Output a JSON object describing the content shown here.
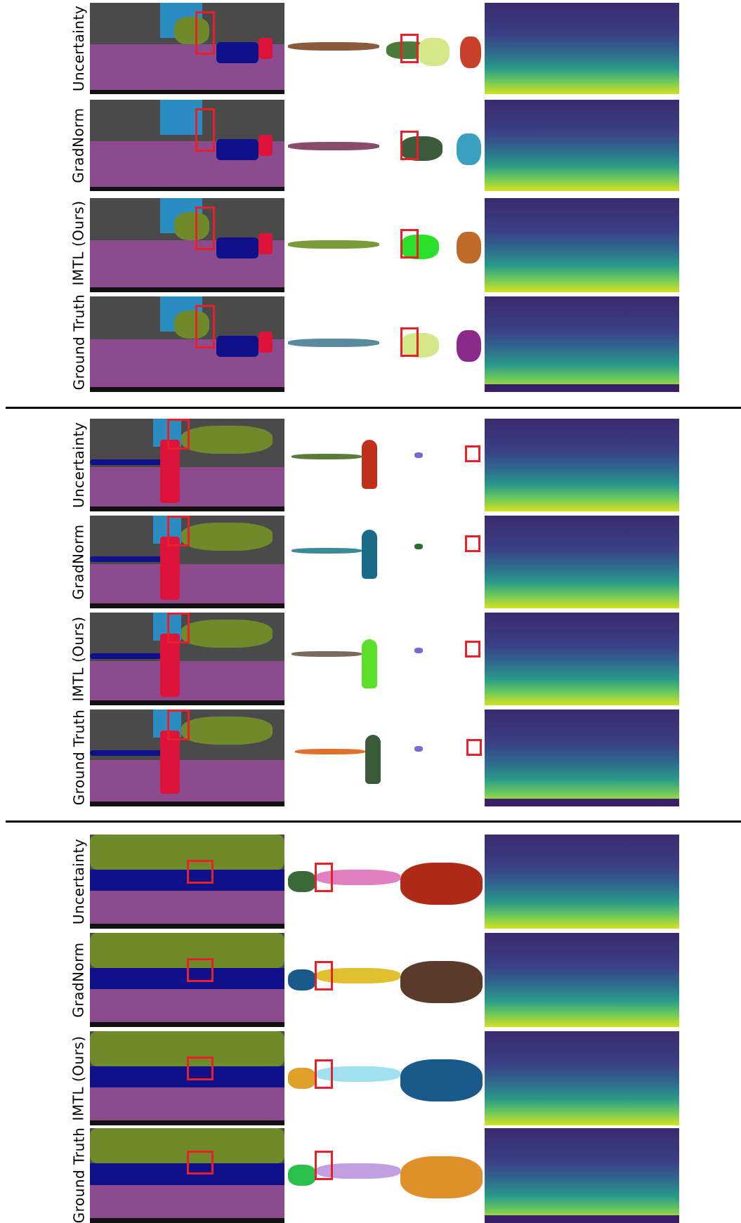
{
  "rows": [
    {
      "label": "Uncertainty"
    },
    {
      "label": "GradNorm"
    },
    {
      "label": "IMTL (Ours)"
    },
    {
      "label": "Ground Truth"
    }
  ],
  "colors": {
    "road": "#8c4b8c",
    "car": "#10108a",
    "vegetation": "#6f8a2a",
    "sky": "#2a8cc0",
    "pedestrian": "#dc143c",
    "highlight_box": "#e8202a"
  }
}
